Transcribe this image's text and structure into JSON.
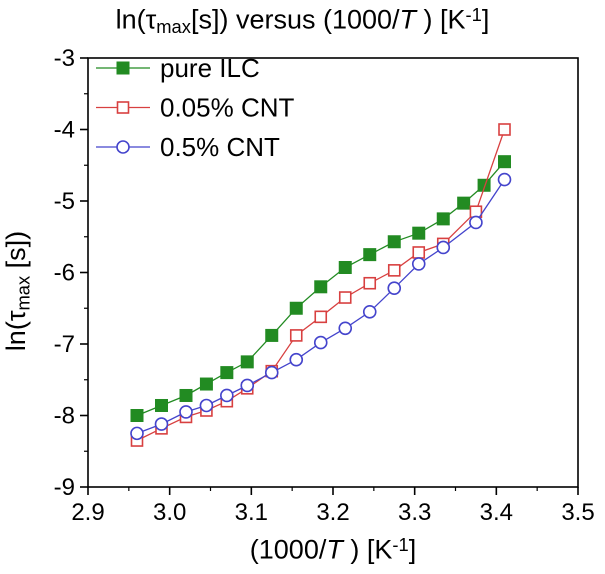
{
  "labels": {
    "title": {
      "p1": "ln(τ",
      "sub": "max",
      "p2": "[s]) versus (1000/",
      "it": "T",
      "p3": " ) [K",
      "sup": "-1",
      "p4": "]"
    },
    "xlabel": {
      "p1": "(1000/",
      "it": "T",
      "p2": " ) [K",
      "sup": "-1",
      "p3": "]"
    },
    "ylabel": {
      "p1": "ln(τ",
      "sub": "max",
      "p2": " [s])"
    }
  },
  "chart_data": {
    "type": "line",
    "title": "ln(τmax[s]) versus (1000/T ) [K-1]",
    "xlabel": "(1000/T ) [K-1]",
    "ylabel": "ln(τmax [s])",
    "xlim": [
      2.9,
      3.5
    ],
    "ylim": [
      -9,
      -3
    ],
    "grid": false,
    "legend_position": "top-left-inside",
    "x_tick_values": [
      2.9,
      3.0,
      3.1,
      3.2,
      3.3,
      3.4,
      3.5
    ],
    "x_tick_labels": [
      "2.9",
      "3.0",
      "3.1",
      "3.2",
      "3.3",
      "3.4",
      "3.5"
    ],
    "x_minor_ticks": [
      2.95,
      3.05,
      3.15,
      3.25,
      3.35,
      3.45
    ],
    "y_tick_values": [
      -3,
      -4,
      -5,
      -6,
      -7,
      -8,
      -9
    ],
    "y_tick_labels": [
      "-3",
      "-4",
      "-5",
      "-6",
      "-7",
      "-8",
      "-9"
    ],
    "y_minor_ticks": [
      -3.5,
      -4.5,
      -5.5,
      -6.5,
      -7.5,
      -8.5
    ],
    "frame_color": "#000000",
    "series": [
      {
        "name": "pure ILC",
        "color": "#228B22",
        "marker": "square-filled",
        "points": [
          [
            2.96,
            -8.0
          ],
          [
            2.99,
            -7.86
          ],
          [
            3.02,
            -7.72
          ],
          [
            3.045,
            -7.56
          ],
          [
            3.07,
            -7.4
          ],
          [
            3.095,
            -7.25
          ],
          [
            3.125,
            -6.88
          ],
          [
            3.155,
            -6.5
          ],
          [
            3.185,
            -6.2
          ],
          [
            3.215,
            -5.93
          ],
          [
            3.245,
            -5.75
          ],
          [
            3.275,
            -5.57
          ],
          [
            3.305,
            -5.45
          ],
          [
            3.335,
            -5.25
          ],
          [
            3.36,
            -5.03
          ],
          [
            3.385,
            -4.78
          ],
          [
            3.41,
            -4.45
          ]
        ]
      },
      {
        "name": "0.05% CNT",
        "color": "#D84040",
        "marker": "square-open",
        "points": [
          [
            2.96,
            -8.35
          ],
          [
            2.99,
            -8.18
          ],
          [
            3.02,
            -8.02
          ],
          [
            3.045,
            -7.93
          ],
          [
            3.07,
            -7.8
          ],
          [
            3.095,
            -7.62
          ],
          [
            3.125,
            -7.38
          ],
          [
            3.155,
            -6.88
          ],
          [
            3.185,
            -6.62
          ],
          [
            3.215,
            -6.35
          ],
          [
            3.245,
            -6.15
          ],
          [
            3.275,
            -5.97
          ],
          [
            3.305,
            -5.72
          ],
          [
            3.335,
            -5.6
          ],
          [
            3.375,
            -5.15
          ],
          [
            3.41,
            -4.0
          ]
        ]
      },
      {
        "name": "0.5% CNT",
        "color": "#4444CC",
        "marker": "circle-open",
        "points": [
          [
            2.96,
            -8.25
          ],
          [
            2.99,
            -8.12
          ],
          [
            3.02,
            -7.95
          ],
          [
            3.045,
            -7.86
          ],
          [
            3.07,
            -7.72
          ],
          [
            3.095,
            -7.58
          ],
          [
            3.125,
            -7.4
          ],
          [
            3.155,
            -7.22
          ],
          [
            3.185,
            -6.98
          ],
          [
            3.215,
            -6.78
          ],
          [
            3.245,
            -6.55
          ],
          [
            3.275,
            -6.22
          ],
          [
            3.305,
            -5.88
          ],
          [
            3.335,
            -5.65
          ],
          [
            3.375,
            -5.3
          ],
          [
            3.41,
            -4.7
          ]
        ]
      }
    ]
  }
}
